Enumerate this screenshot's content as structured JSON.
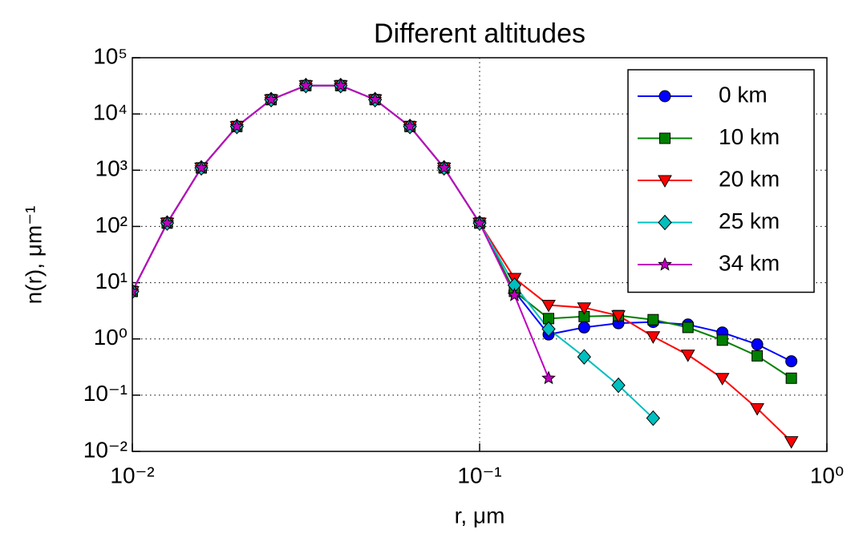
{
  "chart_data": {
    "type": "line",
    "title": "Different altitudes",
    "x_label": "r, μm",
    "y_label": "n(r), μm⁻¹",
    "x": [
      0.01,
      0.0126,
      0.0158,
      0.02,
      0.0251,
      0.0316,
      0.0398,
      0.05,
      0.063,
      0.079,
      0.1,
      0.126,
      0.158,
      0.2,
      0.251,
      0.316,
      0.398,
      0.5,
      0.63,
      0.79
    ],
    "series": [
      {
        "name": "0 km",
        "color": "#0000ff",
        "marker": "circle",
        "values": [
          7,
          115,
          1100,
          6000,
          18000,
          32000,
          32000,
          18000,
          6000,
          1100,
          115,
          7,
          1.2,
          1.6,
          1.9,
          2.0,
          1.8,
          1.3,
          0.8,
          0.4
        ]
      },
      {
        "name": "10 km",
        "color": "#008000",
        "marker": "square",
        "values": [
          7,
          115,
          1100,
          6000,
          18000,
          32000,
          32000,
          18000,
          6000,
          1100,
          115,
          7,
          2.3,
          2.5,
          2.6,
          2.2,
          1.6,
          0.95,
          0.5,
          0.2
        ]
      },
      {
        "name": "20 km",
        "color": "#ff0000",
        "marker": "triangle-down",
        "values": [
          7,
          115,
          1100,
          6000,
          18000,
          32000,
          32000,
          18000,
          6000,
          1100,
          115,
          12,
          4,
          3.6,
          2.6,
          1.1,
          0.52,
          0.2,
          0.058,
          0.015
        ]
      },
      {
        "name": "25 km",
        "color": "#00bfbf",
        "marker": "diamond",
        "values": [
          7,
          115,
          1100,
          6000,
          18000,
          32000,
          32000,
          18000,
          6000,
          1100,
          115,
          9,
          1.5,
          0.48,
          0.15,
          0.039,
          null,
          null,
          null,
          null
        ]
      },
      {
        "name": "34 km",
        "color": "#bf00bf",
        "marker": "star",
        "values": [
          7,
          115,
          1100,
          6000,
          18000,
          32000,
          32000,
          18000,
          6000,
          1100,
          115,
          6,
          0.2,
          null,
          null,
          null,
          null,
          null,
          null,
          null
        ]
      }
    ],
    "xscale": "log",
    "yscale": "log",
    "xlim": [
      0.01,
      1
    ],
    "ylim": [
      0.01,
      100000
    ],
    "xticks": [
      {
        "value": 0.01,
        "label": "10⁻²"
      },
      {
        "value": 0.1,
        "label": "10⁻¹"
      },
      {
        "value": 1,
        "label": "10⁰"
      }
    ],
    "yticks": [
      {
        "value": 0.01,
        "label": "10⁻²"
      },
      {
        "value": 0.1,
        "label": "10⁻¹"
      },
      {
        "value": 1,
        "label": "10⁰"
      },
      {
        "value": 10,
        "label": "10¹"
      },
      {
        "value": 100,
        "label": "10²"
      },
      {
        "value": 1000,
        "label": "10³"
      },
      {
        "value": 10000,
        "label": "10⁴"
      },
      {
        "value": 100000,
        "label": "10⁵"
      }
    ],
    "grid": true,
    "legend": "upper right"
  }
}
